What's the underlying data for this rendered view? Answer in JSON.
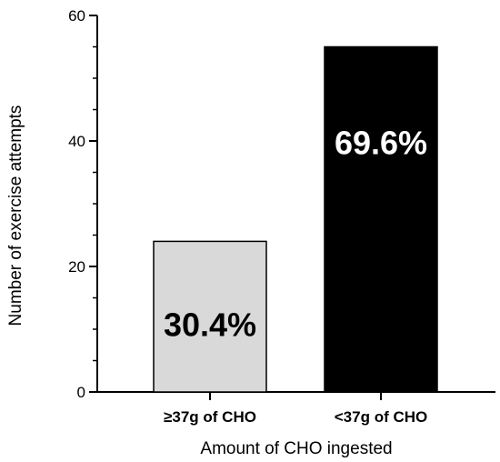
{
  "chart_data": {
    "type": "bar",
    "categories": [
      "≥37g of CHO",
      "<37g of CHO"
    ],
    "values": [
      24,
      55
    ],
    "data_labels": [
      "30.4%",
      "69.6%"
    ],
    "bar_colors": [
      "#d9d9d9",
      "#000000"
    ],
    "data_label_colors": [
      "#000000",
      "#ffffff"
    ],
    "xlabel": "Amount of CHO ingested",
    "ylabel": "Number of exercise attempts",
    "ylim": [
      0,
      60
    ],
    "yticks": [
      0,
      20,
      40,
      60
    ],
    "grid": false
  }
}
